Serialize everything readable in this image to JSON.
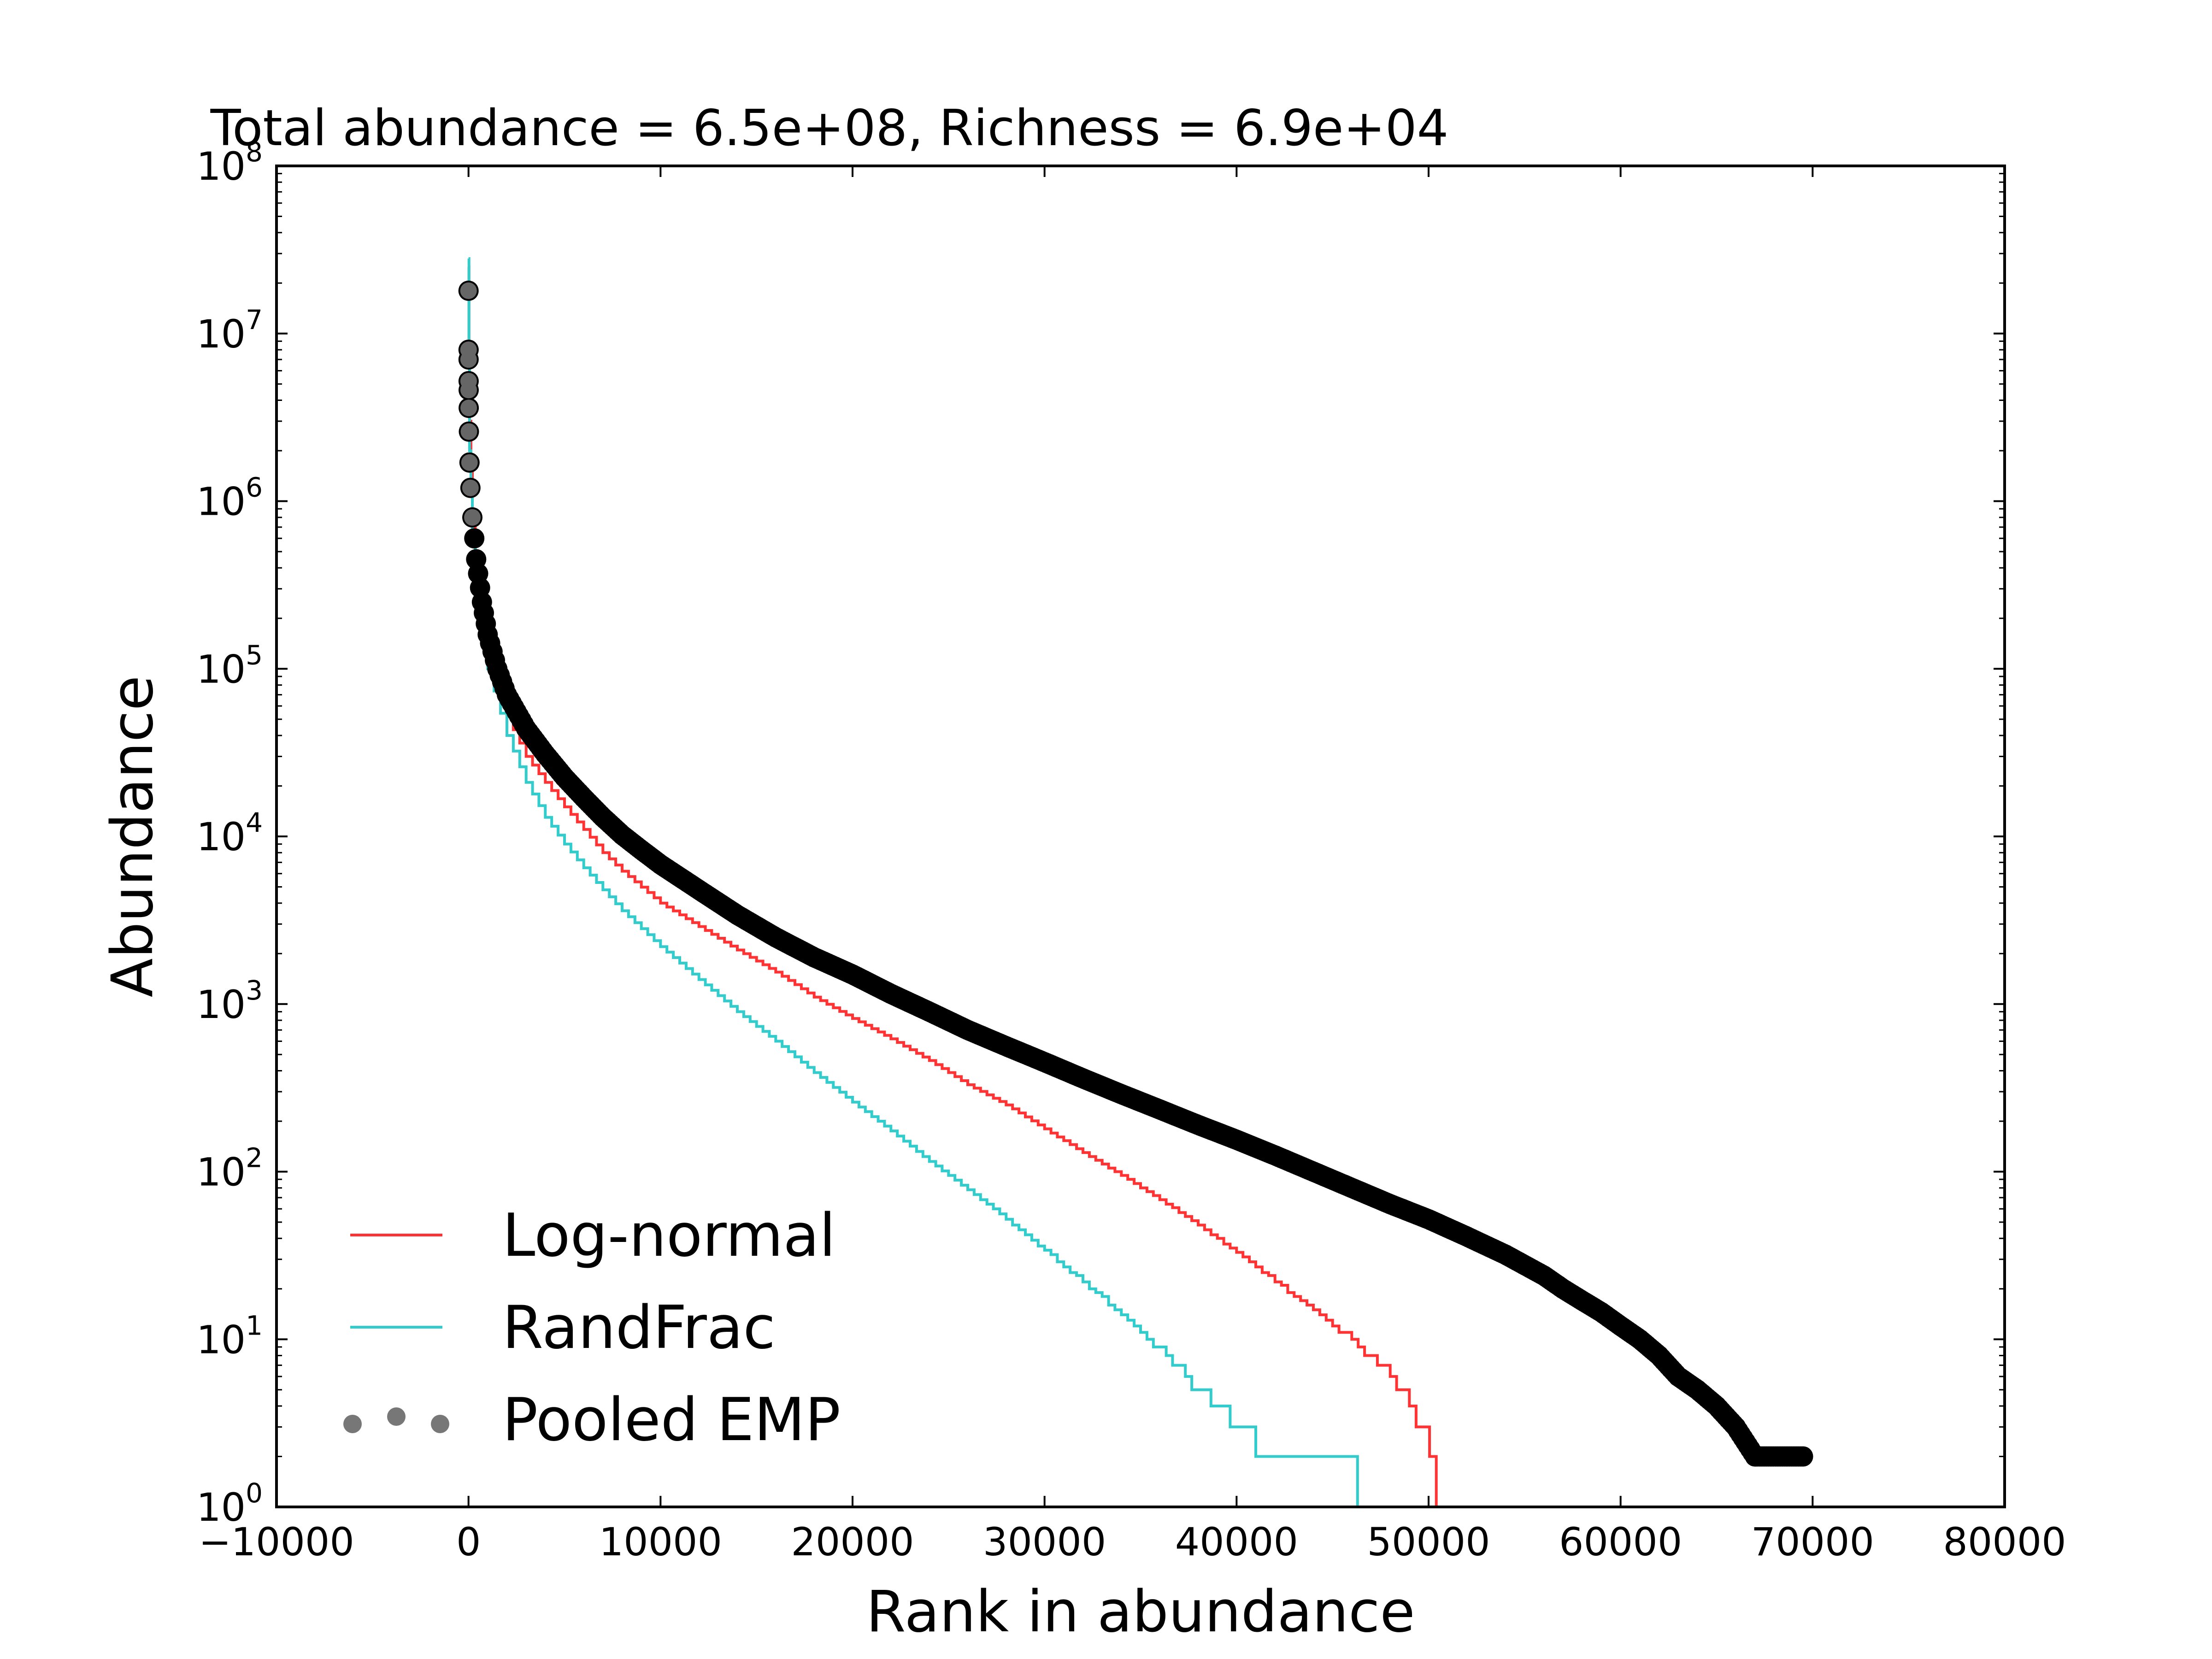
{
  "chart_data": {
    "type": "line",
    "title": "Total abundance = 6.5e+08, Richness = 6.9e+04",
    "xlabel": "Rank in abundance",
    "ylabel": "Abundance",
    "xlim": [
      -10000,
      80000
    ],
    "ylim": [
      1,
      100000000
    ],
    "yscale": "log",
    "grid": false,
    "legend_position": "lower-left",
    "x_ticks": [
      -10000,
      0,
      10000,
      20000,
      30000,
      40000,
      50000,
      60000,
      70000,
      80000
    ],
    "x_tick_labels": [
      "−10000",
      "0",
      "10000",
      "20000",
      "30000",
      "40000",
      "50000",
      "60000",
      "70000",
      "80000"
    ],
    "y_ticks": [
      {
        "value": 1,
        "base": "10",
        "exp": "0"
      },
      {
        "value": 10,
        "base": "10",
        "exp": "1"
      },
      {
        "value": 100,
        "base": "10",
        "exp": "2"
      },
      {
        "value": 1000,
        "base": "10",
        "exp": "3"
      },
      {
        "value": 10000,
        "base": "10",
        "exp": "4"
      },
      {
        "value": 100000,
        "base": "10",
        "exp": "5"
      },
      {
        "value": 1000000,
        "base": "10",
        "exp": "6"
      },
      {
        "value": 10000000,
        "base": "10",
        "exp": "7"
      },
      {
        "value": 100000000,
        "base": "10",
        "exp": "8"
      }
    ],
    "series": [
      {
        "name": "Log-normal",
        "color": "#ff3333",
        "style": "step",
        "points": [
          [
            0,
            25000000
          ],
          [
            50,
            3000000
          ],
          [
            200,
            800000
          ],
          [
            500,
            300000
          ],
          [
            1000,
            120000
          ],
          [
            2000,
            52000
          ],
          [
            3000,
            30000
          ],
          [
            4000,
            21000
          ],
          [
            5000,
            15000
          ],
          [
            6000,
            11000
          ],
          [
            7000,
            8000
          ],
          [
            8000,
            6200
          ],
          [
            10000,
            4000
          ],
          [
            12000,
            2900
          ],
          [
            14000,
            2100
          ],
          [
            16000,
            1550
          ],
          [
            18000,
            1100
          ],
          [
            20000,
            820
          ],
          [
            22000,
            620
          ],
          [
            24000,
            460
          ],
          [
            26000,
            330
          ],
          [
            28000,
            250
          ],
          [
            30000,
            180
          ],
          [
            32000,
            130
          ],
          [
            34000,
            95
          ],
          [
            36000,
            68
          ],
          [
            38000,
            48
          ],
          [
            40000,
            33
          ],
          [
            42000,
            22
          ],
          [
            44000,
            15
          ],
          [
            46000,
            10
          ],
          [
            48000,
            6
          ],
          [
            49000,
            4
          ],
          [
            50400,
            2
          ],
          [
            50400,
            1
          ]
        ]
      },
      {
        "name": "RandFrac",
        "color": "#33cccc",
        "style": "step",
        "points": [
          [
            0,
            28000000
          ],
          [
            50,
            2000000
          ],
          [
            200,
            600000
          ],
          [
            500,
            240000
          ],
          [
            1000,
            100000
          ],
          [
            2000,
            40000
          ],
          [
            3000,
            21000
          ],
          [
            4000,
            13000
          ],
          [
            5000,
            9000
          ],
          [
            6000,
            6500
          ],
          [
            7000,
            4800
          ],
          [
            8000,
            3600
          ],
          [
            10000,
            2200
          ],
          [
            12000,
            1400
          ],
          [
            14000,
            900
          ],
          [
            16000,
            600
          ],
          [
            18000,
            390
          ],
          [
            20000,
            260
          ],
          [
            22000,
            175
          ],
          [
            24000,
            115
          ],
          [
            26000,
            78
          ],
          [
            28000,
            52
          ],
          [
            30000,
            34
          ],
          [
            32000,
            22
          ],
          [
            34000,
            14
          ],
          [
            36000,
            8.5
          ],
          [
            38000,
            5
          ],
          [
            40000,
            3
          ],
          [
            42000,
            2
          ],
          [
            46300,
            2
          ],
          [
            46300,
            1
          ]
        ]
      },
      {
        "name": "Pooled EMP",
        "color": "#000000",
        "style": "markers",
        "points": [
          [
            0,
            18000000
          ],
          [
            2,
            8000000
          ],
          [
            4,
            7000000
          ],
          [
            6,
            5200000
          ],
          [
            8,
            4600000
          ],
          [
            10,
            3600000
          ],
          [
            20,
            2600000
          ],
          [
            50,
            1700000
          ],
          [
            100,
            1200000
          ],
          [
            200,
            800000
          ],
          [
            400,
            450000
          ],
          [
            700,
            250000
          ],
          [
            1000,
            160000
          ],
          [
            1500,
            100000
          ],
          [
            2000,
            70000
          ],
          [
            3000,
            44000
          ],
          [
            4000,
            31000
          ],
          [
            5000,
            22500
          ],
          [
            6000,
            17000
          ],
          [
            7000,
            13000
          ],
          [
            8000,
            10200
          ],
          [
            9000,
            8300
          ],
          [
            10000,
            6800
          ],
          [
            12000,
            4800
          ],
          [
            14000,
            3400
          ],
          [
            16000,
            2500
          ],
          [
            18000,
            1900
          ],
          [
            20000,
            1500
          ],
          [
            22000,
            1150
          ],
          [
            24000,
            900
          ],
          [
            26000,
            700
          ],
          [
            28000,
            560
          ],
          [
            30000,
            450
          ],
          [
            32000,
            360
          ],
          [
            34000,
            290
          ],
          [
            36000,
            235
          ],
          [
            38000,
            190
          ],
          [
            40000,
            155
          ],
          [
            42000,
            125
          ],
          [
            44000,
            100
          ],
          [
            46000,
            80
          ],
          [
            48000,
            64
          ],
          [
            50000,
            52
          ],
          [
            52000,
            41
          ],
          [
            54000,
            32
          ],
          [
            56000,
            24
          ],
          [
            57000,
            20
          ],
          [
            58000,
            17
          ],
          [
            59000,
            14.5
          ],
          [
            60000,
            12
          ],
          [
            61000,
            10
          ],
          [
            62000,
            8
          ],
          [
            63000,
            6
          ],
          [
            64000,
            5
          ],
          [
            65000,
            4
          ],
          [
            66000,
            3
          ],
          [
            67000,
            2
          ],
          [
            69500,
            2
          ]
        ]
      }
    ]
  },
  "legend": {
    "items": [
      {
        "label": "Log-normal",
        "color": "#ff3333",
        "kind": "line"
      },
      {
        "label": "RandFrac",
        "color": "#33cccc",
        "kind": "line"
      },
      {
        "label": "Pooled EMP",
        "color": "#777777",
        "kind": "markers"
      }
    ]
  }
}
